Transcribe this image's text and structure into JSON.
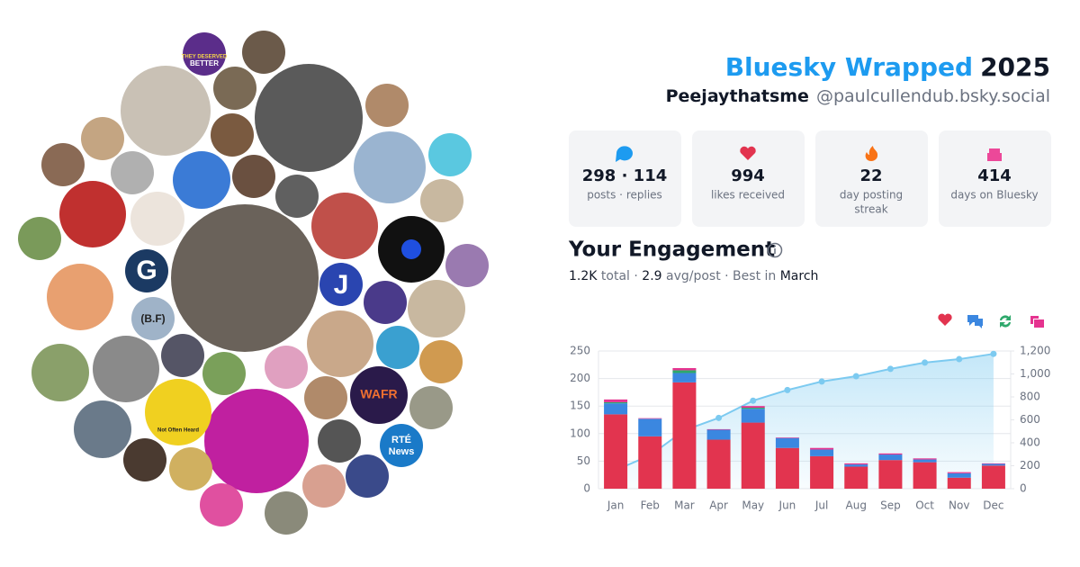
{
  "header": {
    "title": "Bluesky Wrapped",
    "year": "2025",
    "display_name": "Peejaythatsme",
    "handle": "@paulcullendub.bsky.social"
  },
  "stats": [
    {
      "value": "298 · 114",
      "label": "posts · replies"
    },
    {
      "value": "994",
      "label": "likes received"
    },
    {
      "value": "22",
      "label": [
        "day posting",
        "streak"
      ]
    },
    {
      "value": "414",
      "label": "days on Bluesky"
    }
  ],
  "engagement": {
    "title": "Your Engagement",
    "summary": [
      {
        "text": "1.2K",
        "strong": true
      },
      {
        "text": " total · ",
        "strong": false
      },
      {
        "text": "2.9",
        "strong": true
      },
      {
        "text": " avg/post · Best in ",
        "strong": false
      },
      {
        "text": "March",
        "strong": true
      }
    ]
  },
  "collage": {
    "labels": [
      "THEY DESERVED",
      "BETTER",
      "G",
      "J",
      "(B.F)",
      "WAFR",
      "RTÉ",
      "News",
      "Not Often Heard"
    ]
  },
  "chart_data": {
    "type": "bar",
    "stacked": true,
    "grid": true,
    "categories": [
      "Jan",
      "Feb",
      "Mar",
      "Apr",
      "May",
      "Jun",
      "Jul",
      "Aug",
      "Sep",
      "Oct",
      "Nov",
      "Dec"
    ],
    "series": [
      {
        "color": "#e2344f",
        "values": [
          135,
          95,
          193,
          89,
          120,
          74,
          59,
          40,
          52,
          48,
          20,
          42
        ]
      },
      {
        "color": "#3b87e0",
        "values": [
          20,
          32,
          17,
          18,
          25,
          18,
          12,
          4,
          10,
          5,
          8,
          3
        ]
      },
      {
        "color": "#2ea86b",
        "values": [
          2,
          0,
          5,
          0,
          2,
          0,
          0,
          0,
          0,
          0,
          0,
          0
        ]
      },
      {
        "color": "#e5338f",
        "values": [
          5,
          1,
          4,
          1,
          3,
          1,
          3,
          2,
          2,
          2,
          2,
          1
        ]
      },
      {
        "type": "line",
        "axis": "y2",
        "color": "#7ccaf0",
        "values": [
          162,
          290,
          509,
          617,
          767,
          860,
          934,
          980,
          1044,
          1099,
          1129,
          1175
        ]
      }
    ],
    "ylim": [
      0,
      250
    ],
    "yticks": [
      0,
      50,
      100,
      150,
      200,
      250
    ],
    "y2lim": [
      0,
      1200
    ],
    "y2ticks": [
      0,
      200,
      400,
      600,
      800,
      {
        "value": 1000,
        "label": "1,000"
      },
      {
        "value": 1200,
        "label": "1,200"
      }
    ]
  }
}
